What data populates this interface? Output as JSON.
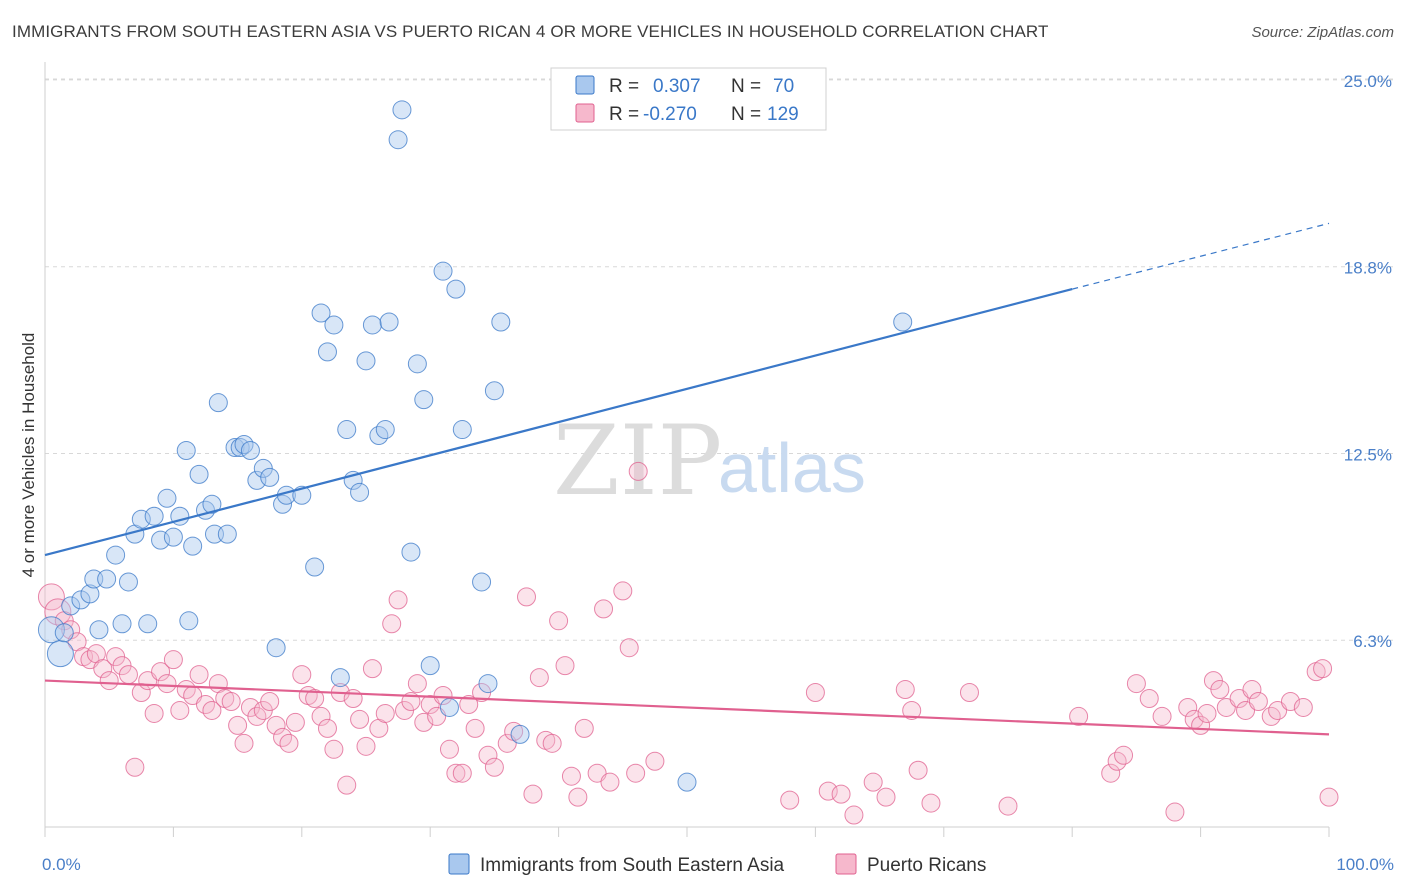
{
  "title": "IMMIGRANTS FROM SOUTH EASTERN ASIA VS PUERTO RICAN 4 OR MORE VEHICLES IN HOUSEHOLD CORRELATION CHART",
  "source": "Source: ZipAtlas.com",
  "watermark": {
    "zip": "ZIP",
    "atlas": "atlas"
  },
  "colors": {
    "blue": "#3a78c8",
    "blue_fill": "#a9c8ee",
    "pink": "#e0608f",
    "pink_fill": "#f6b8cc",
    "grid": "#d8d8d8"
  },
  "legend": {
    "rows": [
      {
        "r_label": "R =",
        "r_value": "0.307",
        "n_label": "N =",
        "n_value": "70"
      },
      {
        "r_label": "R =",
        "r_value": "-0.270",
        "n_label": "N =",
        "n_value": "129"
      }
    ]
  },
  "chart_data": {
    "type": "scatter",
    "ylabel": "4 or more Vehicles in Household",
    "x_ticks": [
      "0.0%",
      "100.0%"
    ],
    "y_ticks": [
      "6.3%",
      "12.5%",
      "18.8%",
      "25.0%"
    ],
    "y_tick_values": [
      6.25,
      12.5,
      18.75,
      25.0
    ],
    "xlim": [
      0,
      100
    ],
    "ylim": [
      0,
      25.6
    ],
    "series": [
      {
        "name": "Immigrants from South Eastern Asia",
        "color": "#3a78c8",
        "trend": {
          "x0": 0,
          "y0": 9.1,
          "x1": 80,
          "y1": 18.0,
          "dash_to_x": 100,
          "dash_to_y": 20.2
        },
        "points": [
          [
            0.5,
            6.6
          ],
          [
            1.2,
            5.8
          ],
          [
            1.5,
            6.5
          ],
          [
            2.0,
            7.4
          ],
          [
            2.8,
            7.6
          ],
          [
            3.5,
            7.8
          ],
          [
            3.8,
            8.3
          ],
          [
            4.2,
            6.6
          ],
          [
            4.8,
            8.3
          ],
          [
            5.5,
            9.1
          ],
          [
            6.0,
            6.8
          ],
          [
            6.5,
            8.2
          ],
          [
            7.0,
            9.8
          ],
          [
            7.5,
            10.3
          ],
          [
            8.0,
            6.8
          ],
          [
            8.5,
            10.4
          ],
          [
            9.0,
            9.6
          ],
          [
            9.5,
            11.0
          ],
          [
            10.0,
            9.7
          ],
          [
            10.5,
            10.4
          ],
          [
            11.0,
            12.6
          ],
          [
            11.2,
            6.9
          ],
          [
            11.5,
            9.4
          ],
          [
            12.0,
            11.8
          ],
          [
            12.5,
            10.6
          ],
          [
            13.0,
            10.8
          ],
          [
            13.2,
            9.8
          ],
          [
            13.5,
            14.2
          ],
          [
            14.2,
            9.8
          ],
          [
            14.8,
            12.7
          ],
          [
            15.2,
            12.7
          ],
          [
            15.5,
            12.8
          ],
          [
            16.0,
            12.6
          ],
          [
            16.5,
            11.6
          ],
          [
            17.0,
            12.0
          ],
          [
            17.5,
            11.7
          ],
          [
            18.0,
            6.0
          ],
          [
            18.5,
            10.8
          ],
          [
            18.8,
            11.1
          ],
          [
            20.0,
            11.1
          ],
          [
            21.0,
            8.7
          ],
          [
            21.5,
            17.2
          ],
          [
            22.0,
            15.9
          ],
          [
            22.5,
            16.8
          ],
          [
            23.0,
            5.0
          ],
          [
            23.5,
            13.3
          ],
          [
            24.0,
            11.6
          ],
          [
            24.5,
            11.2
          ],
          [
            25.0,
            15.6
          ],
          [
            25.5,
            16.8
          ],
          [
            26.0,
            13.1
          ],
          [
            26.5,
            13.3
          ],
          [
            26.8,
            16.9
          ],
          [
            27.5,
            23.0
          ],
          [
            27.8,
            24.0
          ],
          [
            28.5,
            9.2
          ],
          [
            29.0,
            15.5
          ],
          [
            29.5,
            14.3
          ],
          [
            30.0,
            5.4
          ],
          [
            31.0,
            18.6
          ],
          [
            31.5,
            4.0
          ],
          [
            32.0,
            18.0
          ],
          [
            32.5,
            13.3
          ],
          [
            34.0,
            8.2
          ],
          [
            34.5,
            4.8
          ],
          [
            35.0,
            14.6
          ],
          [
            35.5,
            16.9
          ],
          [
            37.0,
            3.1
          ],
          [
            50.0,
            1.5
          ],
          [
            66.8,
            16.9
          ]
        ]
      },
      {
        "name": "Puerto Ricans",
        "color": "#e0608f",
        "trend": {
          "x0": 0,
          "y0": 4.9,
          "x1": 100,
          "y1": 3.1
        },
        "points": [
          [
            0.5,
            7.7
          ],
          [
            1.0,
            7.2
          ],
          [
            1.5,
            6.9
          ],
          [
            2.0,
            6.6
          ],
          [
            2.5,
            6.2
          ],
          [
            3.0,
            5.7
          ],
          [
            3.5,
            5.6
          ],
          [
            4.0,
            5.8
          ],
          [
            4.5,
            5.3
          ],
          [
            5.0,
            4.9
          ],
          [
            5.5,
            5.7
          ],
          [
            6.0,
            5.4
          ],
          [
            6.5,
            5.1
          ],
          [
            7.0,
            2.0
          ],
          [
            7.5,
            4.5
          ],
          [
            8.0,
            4.9
          ],
          [
            8.5,
            3.8
          ],
          [
            9.0,
            5.2
          ],
          [
            9.5,
            4.8
          ],
          [
            10.0,
            5.6
          ],
          [
            10.5,
            3.9
          ],
          [
            11.0,
            4.6
          ],
          [
            11.5,
            4.4
          ],
          [
            12.0,
            5.1
          ],
          [
            12.5,
            4.1
          ],
          [
            13.0,
            3.9
          ],
          [
            13.5,
            4.8
          ],
          [
            14.0,
            4.3
          ],
          [
            14.5,
            4.2
          ],
          [
            15.0,
            3.4
          ],
          [
            15.5,
            2.8
          ],
          [
            16.0,
            4.0
          ],
          [
            16.5,
            3.7
          ],
          [
            17.0,
            3.9
          ],
          [
            17.5,
            4.2
          ],
          [
            18.0,
            3.4
          ],
          [
            18.5,
            3.0
          ],
          [
            19.0,
            2.8
          ],
          [
            19.5,
            3.5
          ],
          [
            20.0,
            5.1
          ],
          [
            20.5,
            4.4
          ],
          [
            21.0,
            4.3
          ],
          [
            21.5,
            3.7
          ],
          [
            22.0,
            3.3
          ],
          [
            22.5,
            2.6
          ],
          [
            23.0,
            4.5
          ],
          [
            23.5,
            1.4
          ],
          [
            24.0,
            4.3
          ],
          [
            24.5,
            3.6
          ],
          [
            25.0,
            2.7
          ],
          [
            25.5,
            5.3
          ],
          [
            26.0,
            3.3
          ],
          [
            26.5,
            3.8
          ],
          [
            27.0,
            6.8
          ],
          [
            27.5,
            7.6
          ],
          [
            28.0,
            3.9
          ],
          [
            28.5,
            4.2
          ],
          [
            29.0,
            4.8
          ],
          [
            29.5,
            3.5
          ],
          [
            30.0,
            4.1
          ],
          [
            30.5,
            3.7
          ],
          [
            31.0,
            4.4
          ],
          [
            31.5,
            2.6
          ],
          [
            32.0,
            1.8
          ],
          [
            32.5,
            1.8
          ],
          [
            33.0,
            4.1
          ],
          [
            33.5,
            3.3
          ],
          [
            34.0,
            4.5
          ],
          [
            34.5,
            2.4
          ],
          [
            35.0,
            2.0
          ],
          [
            36.0,
            2.8
          ],
          [
            36.5,
            3.2
          ],
          [
            37.5,
            7.7
          ],
          [
            38.0,
            1.1
          ],
          [
            38.5,
            5.0
          ],
          [
            39.0,
            2.9
          ],
          [
            39.5,
            2.8
          ],
          [
            40.0,
            6.9
          ],
          [
            40.5,
            5.4
          ],
          [
            41.0,
            1.7
          ],
          [
            41.5,
            1.0
          ],
          [
            42.0,
            3.3
          ],
          [
            43.0,
            1.8
          ],
          [
            43.5,
            7.3
          ],
          [
            44.0,
            1.5
          ],
          [
            45.0,
            7.9
          ],
          [
            45.5,
            6.0
          ],
          [
            46.0,
            1.8
          ],
          [
            46.2,
            11.9
          ],
          [
            47.5,
            2.2
          ],
          [
            58.0,
            0.9
          ],
          [
            60.0,
            4.5
          ],
          [
            61.0,
            1.2
          ],
          [
            62.0,
            1.1
          ],
          [
            63.0,
            0.4
          ],
          [
            64.5,
            1.5
          ],
          [
            65.5,
            1.0
          ],
          [
            67.0,
            4.6
          ],
          [
            67.5,
            3.9
          ],
          [
            68.0,
            1.9
          ],
          [
            69.0,
            0.8
          ],
          [
            72.0,
            4.5
          ],
          [
            75.0,
            0.7
          ],
          [
            80.5,
            3.7
          ],
          [
            83.0,
            1.8
          ],
          [
            83.5,
            2.2
          ],
          [
            84.0,
            2.4
          ],
          [
            85.0,
            4.8
          ],
          [
            86.0,
            4.3
          ],
          [
            87.0,
            3.7
          ],
          [
            88.0,
            0.5
          ],
          [
            89.0,
            4.0
          ],
          [
            89.5,
            3.6
          ],
          [
            90.0,
            3.4
          ],
          [
            90.5,
            3.8
          ],
          [
            91.0,
            4.9
          ],
          [
            91.5,
            4.6
          ],
          [
            92.0,
            4.0
          ],
          [
            93.0,
            4.3
          ],
          [
            93.5,
            3.9
          ],
          [
            94.0,
            4.6
          ],
          [
            94.5,
            4.2
          ],
          [
            95.5,
            3.7
          ],
          [
            96.0,
            3.9
          ],
          [
            97.0,
            4.2
          ],
          [
            98.0,
            4.0
          ],
          [
            99.0,
            5.2
          ],
          [
            99.5,
            5.3
          ],
          [
            100.0,
            1.0
          ]
        ]
      }
    ]
  }
}
